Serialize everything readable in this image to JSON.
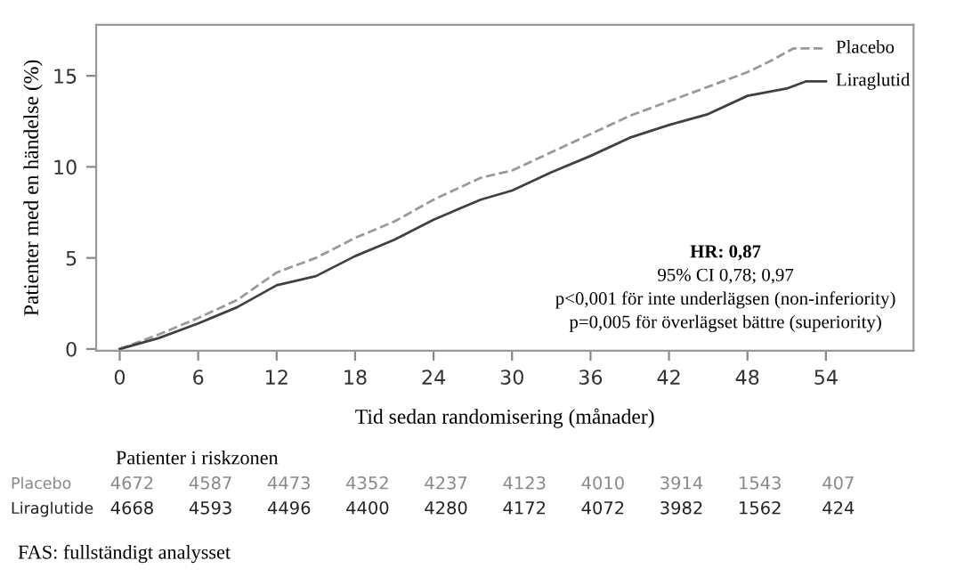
{
  "chart_data": {
    "type": "line",
    "xlabel": "Tid sedan randomisering (månader)",
    "ylabel": "Patienter med en händelse (%)",
    "xlim": [
      -1.8,
      60.7
    ],
    "xticks": [
      0,
      6,
      12,
      18,
      24,
      30,
      36,
      42,
      48,
      54
    ],
    "ylim": [
      -0.1,
      17.8
    ],
    "yticks": [
      0,
      5,
      10,
      15
    ],
    "grid": false,
    "legend": false,
    "marker": "none",
    "series": [
      {
        "name": "Placebo",
        "color": "#999999",
        "line_style": "dashed",
        "x": [
          0,
          3,
          6,
          9,
          12,
          15,
          18,
          21,
          24,
          27.6,
          30,
          33,
          36,
          39,
          42,
          45,
          48,
          50,
          51.5,
          54
        ],
        "values": [
          0,
          0.8,
          1.7,
          2.7,
          4.2,
          5.0,
          6.1,
          7.0,
          8.2,
          9.4,
          9.8,
          10.8,
          11.8,
          12.8,
          13.6,
          14.4,
          15.2,
          15.9,
          16.5,
          16.5
        ]
      },
      {
        "name": "Liraglutid",
        "color": "#404040",
        "line_style": "solid",
        "x": [
          0,
          3,
          6,
          9,
          12,
          15,
          18,
          21,
          24,
          27.6,
          30,
          33,
          36,
          39,
          42,
          45,
          48,
          51,
          52.5,
          54
        ],
        "values": [
          0,
          0.6,
          1.4,
          2.3,
          3.5,
          4.0,
          5.1,
          6.0,
          7.1,
          8.2,
          8.7,
          9.7,
          10.6,
          11.6,
          12.3,
          12.9,
          13.9,
          14.3,
          14.7,
          14.7
        ]
      }
    ],
    "annotations": [
      "HR: 0,87",
      "95% CI 0,78; 0,97",
      "p<0,001 för inte underlägsen (non-inferiority)",
      "p=0,005 för överlägset bättre (superiority)",
      "Patienter i riskzonen",
      "Placebo",
      "4672",
      "4587",
      "4473",
      "4352",
      "4237",
      "4123",
      "4010",
      "3914",
      "1543",
      "407",
      "Liraglutide",
      "4668",
      "4593",
      "4496",
      "4400",
      "4280",
      "4172",
      "4072",
      "3982",
      "1562",
      "424",
      "FAS: fullständigt analysset"
    ]
  }
}
